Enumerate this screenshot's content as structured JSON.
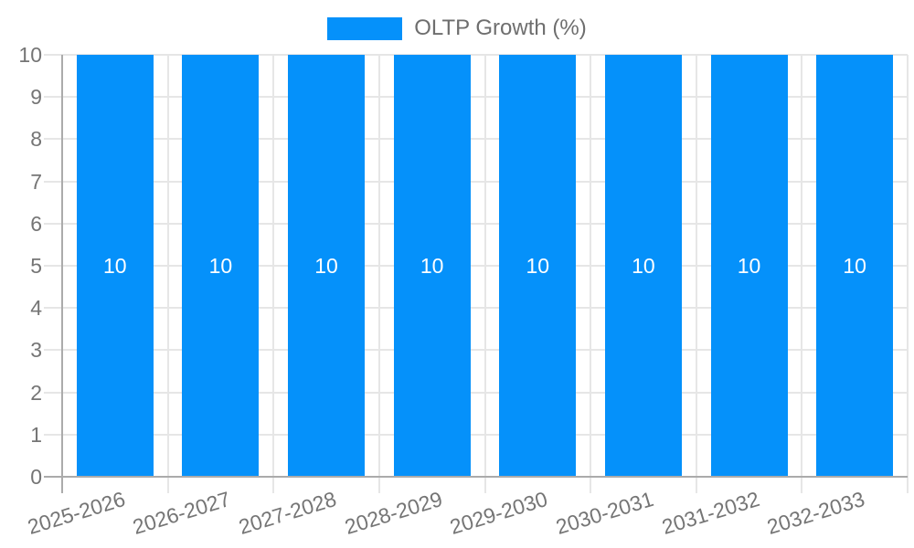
{
  "chart_data": {
    "type": "bar",
    "title": "",
    "legend": "OLTP Growth (%)",
    "legend_position": "top",
    "categories": [
      "2025-2026",
      "2026-2027",
      "2027-2028",
      "2028-2029",
      "2029-2030",
      "2030-2031",
      "2031-2032",
      "2032-2033"
    ],
    "series": [
      {
        "name": "OLTP Growth (%)",
        "values": [
          10,
          10,
          10,
          10,
          10,
          10,
          10,
          10
        ]
      }
    ],
    "bar_value_labels": [
      "10",
      "10",
      "10",
      "10",
      "10",
      "10",
      "10",
      "10"
    ],
    "xlabel": "",
    "ylabel": "",
    "ylim": [
      0,
      10
    ],
    "yticks": [
      0,
      1,
      2,
      3,
      4,
      5,
      6,
      7,
      8,
      9,
      10
    ],
    "grid": true,
    "colors": {
      "bar": "#0591fa",
      "bar_label_text": "#ffffff",
      "axis_line": "#ababab",
      "gridline": "#e6e6e6",
      "axis_label_text": "#757575",
      "legend_text": "#6e6e6e",
      "background": "#ffffff"
    }
  }
}
